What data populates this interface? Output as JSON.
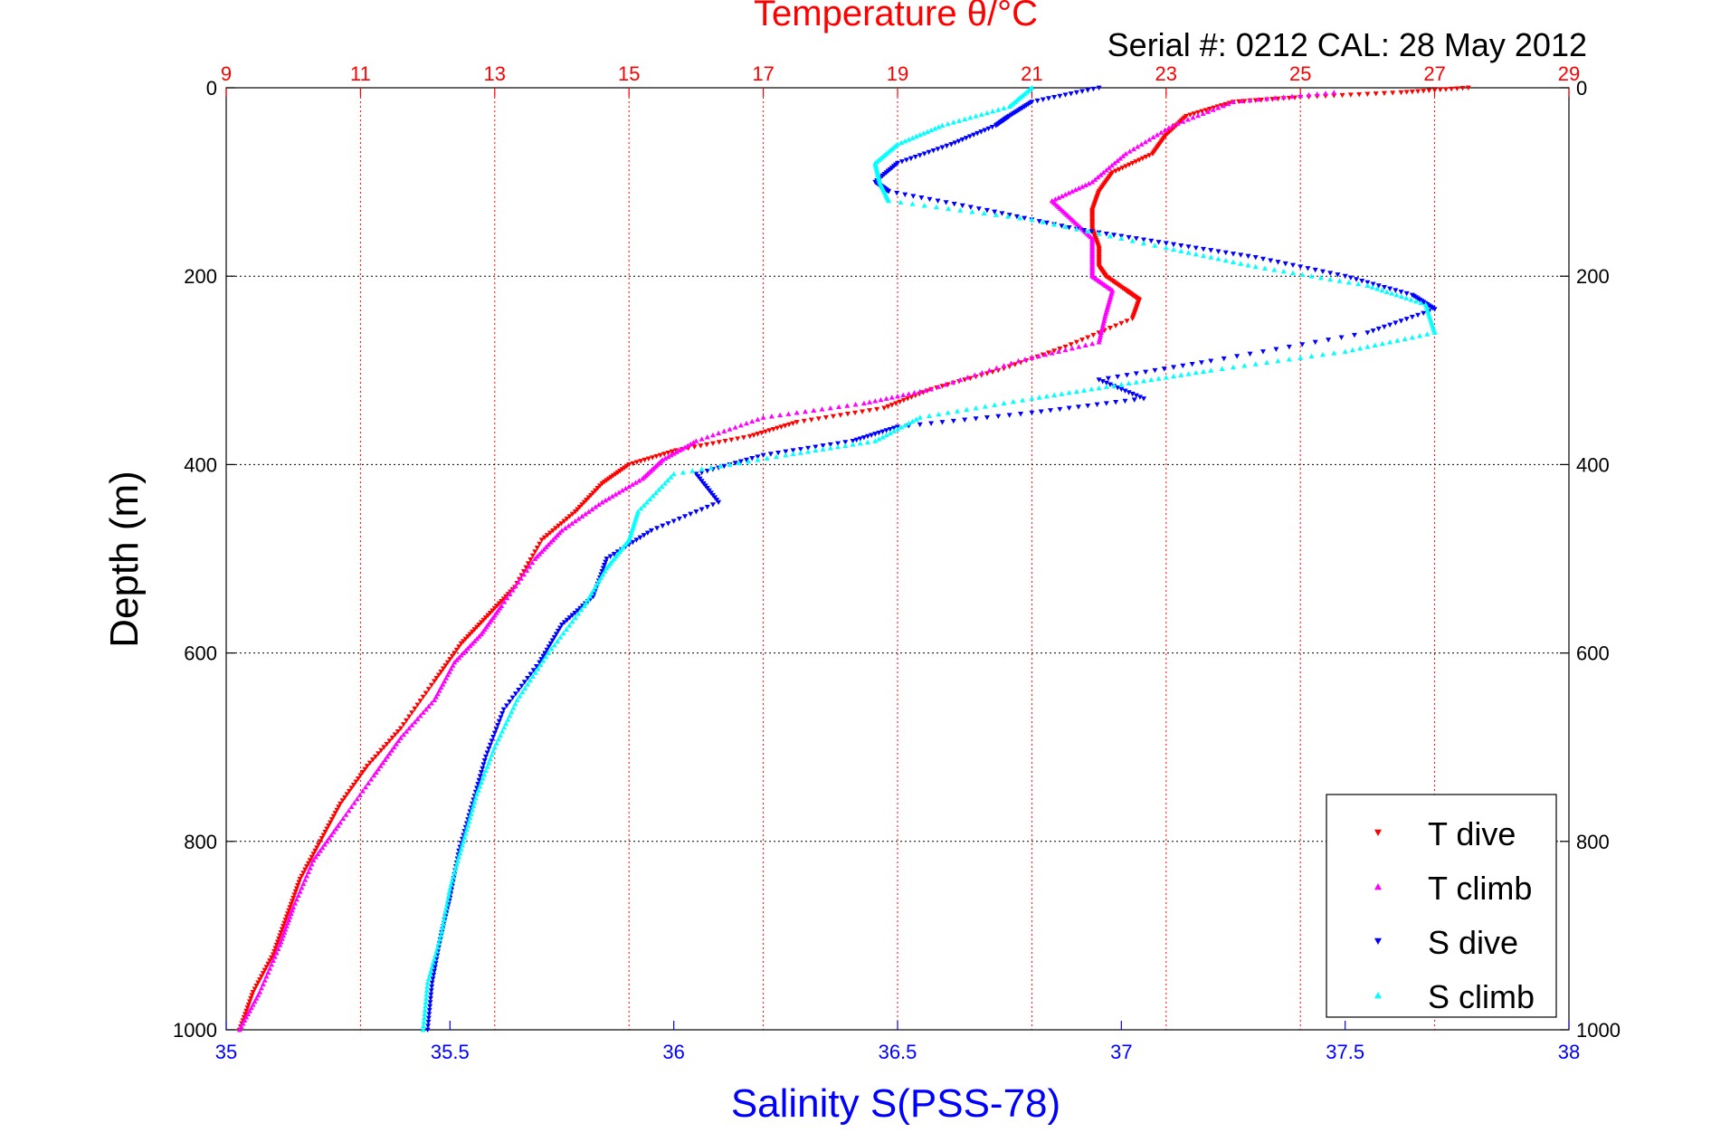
{
  "chart_data": {
    "type": "scatter",
    "title": "Temperature θ/°C",
    "subtitle": "Serial #: 0212  CAL: 28 May 2012",
    "ylabel": "Depth (m)",
    "xlabel_bottom": "Salinity S(PSS-78)",
    "xlabel_top": "Temperature θ/°C",
    "ylim": [
      0,
      1000
    ],
    "y_reversed": true,
    "xlim_salinity": [
      35,
      38
    ],
    "xlim_temperature": [
      9,
      29
    ],
    "y_ticks": [
      0,
      200,
      400,
      600,
      800,
      1000
    ],
    "y_tick_labels": [
      "0",
      "200",
      "400",
      "600",
      "800",
      "1000"
    ],
    "salinity_ticks": [
      35,
      35.5,
      36,
      36.5,
      37,
      37.5,
      38
    ],
    "salinity_tick_labels": [
      "35",
      "35.5",
      "36",
      "36.5",
      "37",
      "37.5",
      "38"
    ],
    "temperature_ticks": [
      9,
      11,
      13,
      15,
      17,
      19,
      21,
      23,
      25,
      27,
      29
    ],
    "temperature_tick_labels": [
      "9",
      "11",
      "13",
      "15",
      "17",
      "19",
      "21",
      "23",
      "25",
      "27",
      "29"
    ],
    "grid": true,
    "legend_position": "bottom-right",
    "colors": {
      "temperature_axis": "#ff0000",
      "salinity_axis": "#0000ff",
      "t_dive": "#ff0000",
      "t_climb": "#ff00ff",
      "s_dive": "#0000ff",
      "s_climb": "#00ffff"
    },
    "series": [
      {
        "name": "T dive",
        "axis": "temperature",
        "marker": "triangle-down",
        "color": "#ff0000",
        "points": [
          [
            27.5,
            0
          ],
          [
            26.5,
            5
          ],
          [
            25,
            10
          ],
          [
            24,
            15
          ],
          [
            23.3,
            30
          ],
          [
            23,
            50
          ],
          [
            22.8,
            70
          ],
          [
            22.2,
            90
          ],
          [
            22,
            110
          ],
          [
            21.9,
            130
          ],
          [
            21.9,
            150
          ],
          [
            22.0,
            170
          ],
          [
            22.0,
            190
          ],
          [
            22.1,
            200
          ],
          [
            22.4,
            215
          ],
          [
            22.6,
            225
          ],
          [
            22.5,
            245
          ],
          [
            21.5,
            275
          ],
          [
            20.5,
            300
          ],
          [
            19.5,
            320
          ],
          [
            18.8,
            340
          ],
          [
            17.5,
            355
          ],
          [
            16.8,
            370
          ],
          [
            15.7,
            385
          ],
          [
            15.0,
            400
          ],
          [
            14.6,
            420
          ],
          [
            14.2,
            450
          ],
          [
            13.7,
            480
          ],
          [
            13.3,
            530
          ],
          [
            12.9,
            560
          ],
          [
            12.5,
            590
          ],
          [
            12.1,
            630
          ],
          [
            11.6,
            680
          ],
          [
            11.1,
            720
          ],
          [
            10.7,
            760
          ],
          [
            10.4,
            800
          ],
          [
            10.1,
            840
          ],
          [
            9.9,
            880
          ],
          [
            9.7,
            920
          ],
          [
            9.4,
            960
          ],
          [
            9.2,
            1000
          ]
        ]
      },
      {
        "name": "T climb",
        "axis": "temperature",
        "marker": "triangle-up",
        "color": "#ff00ff",
        "points": [
          [
            25.5,
            5
          ],
          [
            24,
            15
          ],
          [
            23.1,
            40
          ],
          [
            22.4,
            70
          ],
          [
            21.9,
            100
          ],
          [
            21.3,
            120
          ],
          [
            21.6,
            140
          ],
          [
            21.9,
            160
          ],
          [
            21.9,
            180
          ],
          [
            21.9,
            200
          ],
          [
            22.2,
            215
          ],
          [
            22.1,
            240
          ],
          [
            22.0,
            270
          ],
          [
            20.8,
            290
          ],
          [
            19.5,
            320
          ],
          [
            18.5,
            335
          ],
          [
            17.0,
            350
          ],
          [
            16.0,
            375
          ],
          [
            15.5,
            395
          ],
          [
            15.2,
            415
          ],
          [
            14.6,
            440
          ],
          [
            14.0,
            470
          ],
          [
            13.6,
            500
          ],
          [
            13.1,
            550
          ],
          [
            12.8,
            580
          ],
          [
            12.4,
            610
          ],
          [
            12.1,
            650
          ],
          [
            11.6,
            690
          ],
          [
            11.2,
            730
          ],
          [
            10.7,
            780
          ],
          [
            10.3,
            820
          ],
          [
            10.0,
            870
          ],
          [
            9.8,
            910
          ],
          [
            9.5,
            960
          ],
          [
            9.2,
            1000
          ]
        ]
      },
      {
        "name": "S dive",
        "axis": "salinity",
        "marker": "triangle-down",
        "color": "#0000ff",
        "points": [
          [
            36.95,
            0
          ],
          [
            36.8,
            15
          ],
          [
            36.75,
            30
          ],
          [
            36.72,
            40
          ],
          [
            36.62,
            60
          ],
          [
            36.5,
            80
          ],
          [
            36.45,
            100
          ],
          [
            36.48,
            110
          ],
          [
            36.7,
            130
          ],
          [
            36.9,
            150
          ],
          [
            37.1,
            165
          ],
          [
            37.3,
            180
          ],
          [
            37.5,
            200
          ],
          [
            37.65,
            220
          ],
          [
            37.7,
            235
          ],
          [
            37.55,
            260
          ],
          [
            37.2,
            290
          ],
          [
            36.95,
            310
          ],
          [
            37.05,
            330
          ],
          [
            36.8,
            345
          ],
          [
            36.5,
            360
          ],
          [
            36.4,
            375
          ],
          [
            36.2,
            390
          ],
          [
            36.05,
            410
          ],
          [
            36.1,
            440
          ],
          [
            35.95,
            470
          ],
          [
            35.85,
            500
          ],
          [
            35.82,
            540
          ],
          [
            35.75,
            570
          ],
          [
            35.7,
            610
          ],
          [
            35.62,
            660
          ],
          [
            35.58,
            710
          ],
          [
            35.55,
            760
          ],
          [
            35.52,
            810
          ],
          [
            35.5,
            860
          ],
          [
            35.48,
            900
          ],
          [
            35.46,
            950
          ],
          [
            35.45,
            1000
          ]
        ]
      },
      {
        "name": "S climb",
        "axis": "salinity",
        "marker": "triangle-up",
        "color": "#00ffff",
        "points": [
          [
            36.8,
            0
          ],
          [
            36.75,
            20
          ],
          [
            36.6,
            40
          ],
          [
            36.5,
            60
          ],
          [
            36.45,
            80
          ],
          [
            36.46,
            100
          ],
          [
            36.48,
            120
          ],
          [
            36.8,
            140
          ],
          [
            37.1,
            170
          ],
          [
            37.3,
            190
          ],
          [
            37.55,
            210
          ],
          [
            37.68,
            230
          ],
          [
            37.7,
            260
          ],
          [
            37.5,
            280
          ],
          [
            37.2,
            300
          ],
          [
            37.0,
            315
          ],
          [
            36.8,
            330
          ],
          [
            36.55,
            350
          ],
          [
            36.45,
            375
          ],
          [
            36.25,
            390
          ],
          [
            36.0,
            410
          ],
          [
            35.92,
            450
          ],
          [
            35.9,
            480
          ],
          [
            35.85,
            510
          ],
          [
            35.8,
            550
          ],
          [
            35.72,
            600
          ],
          [
            35.65,
            650
          ],
          [
            35.6,
            700
          ],
          [
            35.56,
            750
          ],
          [
            35.53,
            800
          ],
          [
            35.5,
            850
          ],
          [
            35.48,
            900
          ],
          [
            35.45,
            950
          ],
          [
            35.44,
            1000
          ]
        ]
      }
    ]
  }
}
